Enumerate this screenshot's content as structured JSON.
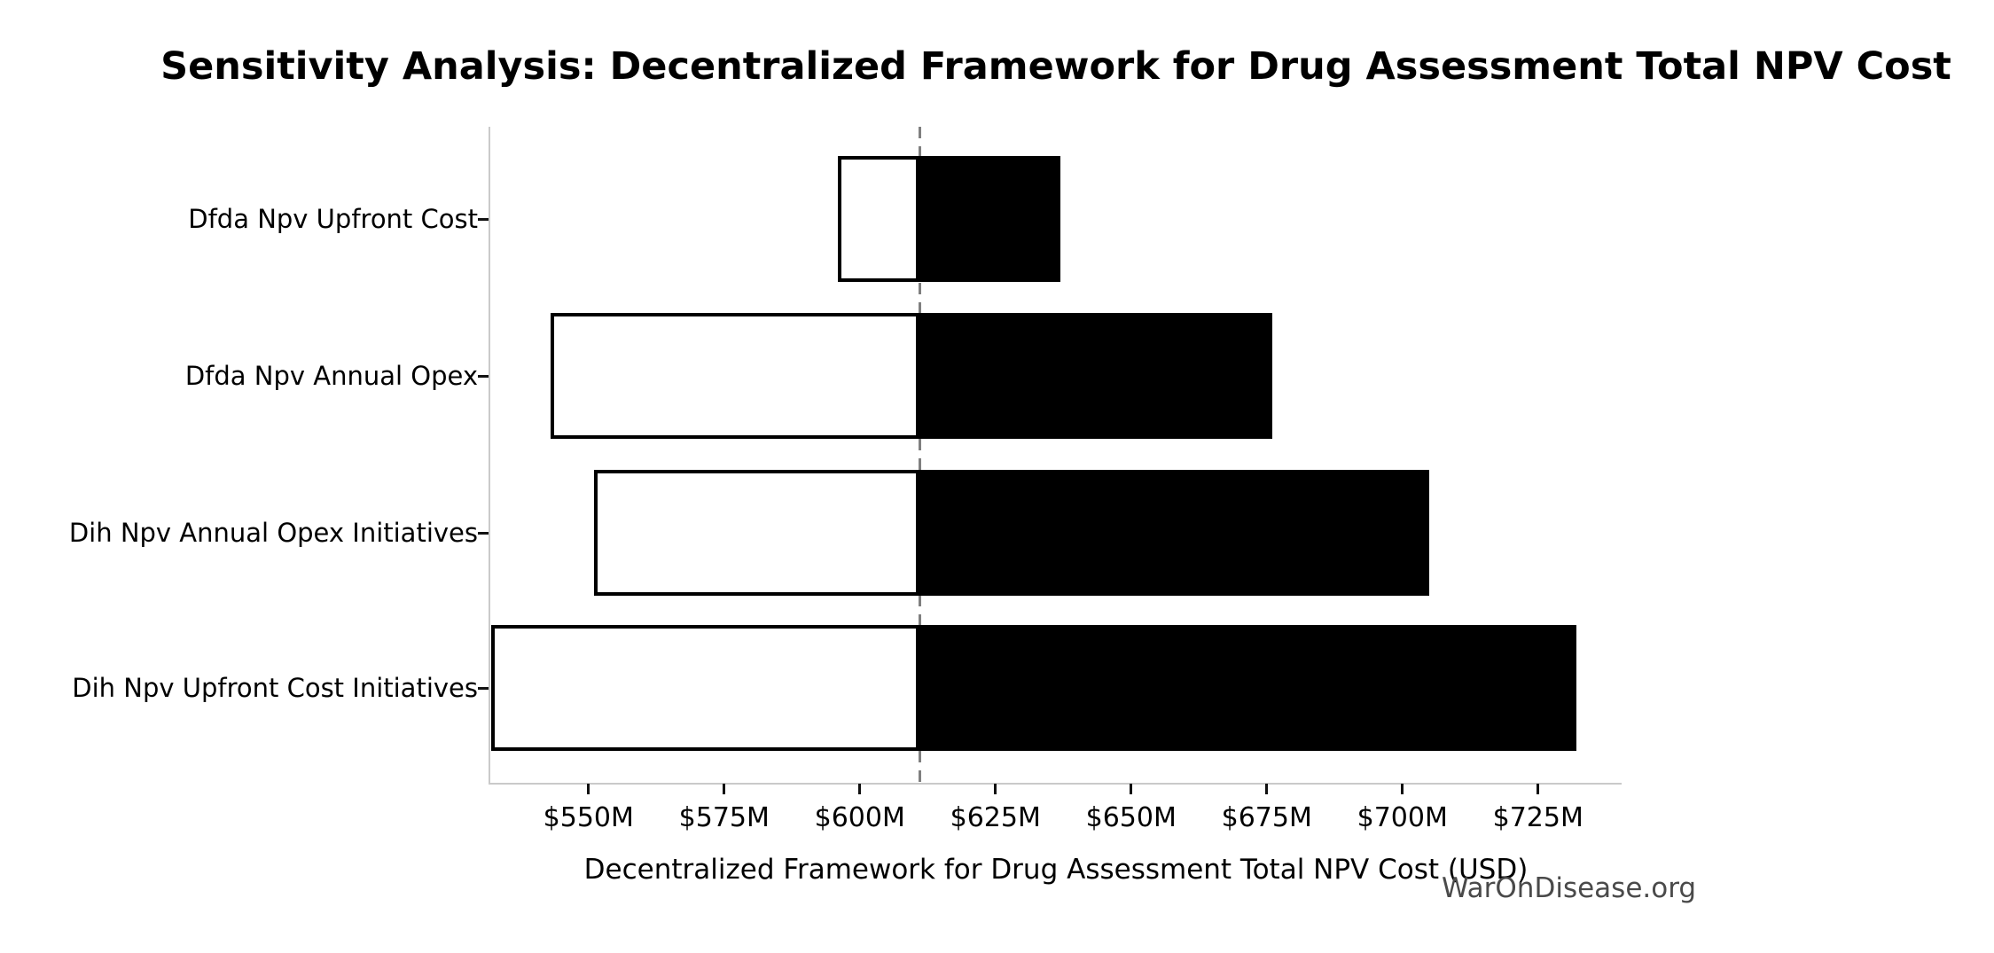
{
  "watermark": "WarOnDisease.org",
  "chart_data": {
    "type": "bar",
    "subtype": "tornado-sensitivity",
    "title": "Sensitivity Analysis: Decentralized Framework for Drug Assessment Total NPV Cost",
    "xlabel": "Decentralized Framework for Drug Assessment Total NPV Cost (USD)",
    "ylabel": "",
    "unit": "USD millions",
    "base_value": 611,
    "xlim": [
      531.9,
      740.4
    ],
    "grid": false,
    "legend": null,
    "x_ticks": [
      {
        "value": 550,
        "label": "$550M"
      },
      {
        "value": 575,
        "label": "$575M"
      },
      {
        "value": 600,
        "label": "$600M"
      },
      {
        "value": 625,
        "label": "$625M"
      },
      {
        "value": 650,
        "label": "$650M"
      },
      {
        "value": 675,
        "label": "$675M"
      },
      {
        "value": 700,
        "label": "$700M"
      },
      {
        "value": 725,
        "label": "$725M"
      }
    ],
    "categories": [
      {
        "label": "Dfda Npv Upfront Cost",
        "low": 596,
        "high": 637
      },
      {
        "label": "Dfda Npv Annual Opex",
        "low": 543,
        "high": 676
      },
      {
        "label": "Dih Npv Annual Opex Initiatives",
        "low": 551,
        "high": 705
      },
      {
        "label": "Dih Npv Upfront Cost Initiatives",
        "low": 532,
        "high": 732
      }
    ],
    "colors": {
      "low_fill": "#ffffff",
      "high_fill": "#000000",
      "bar_edge": "#000000",
      "baseline_dash": "#7f7f7f",
      "spine": "#cacaca",
      "tick": "#111111",
      "watermark": "#4a4a4a"
    }
  }
}
